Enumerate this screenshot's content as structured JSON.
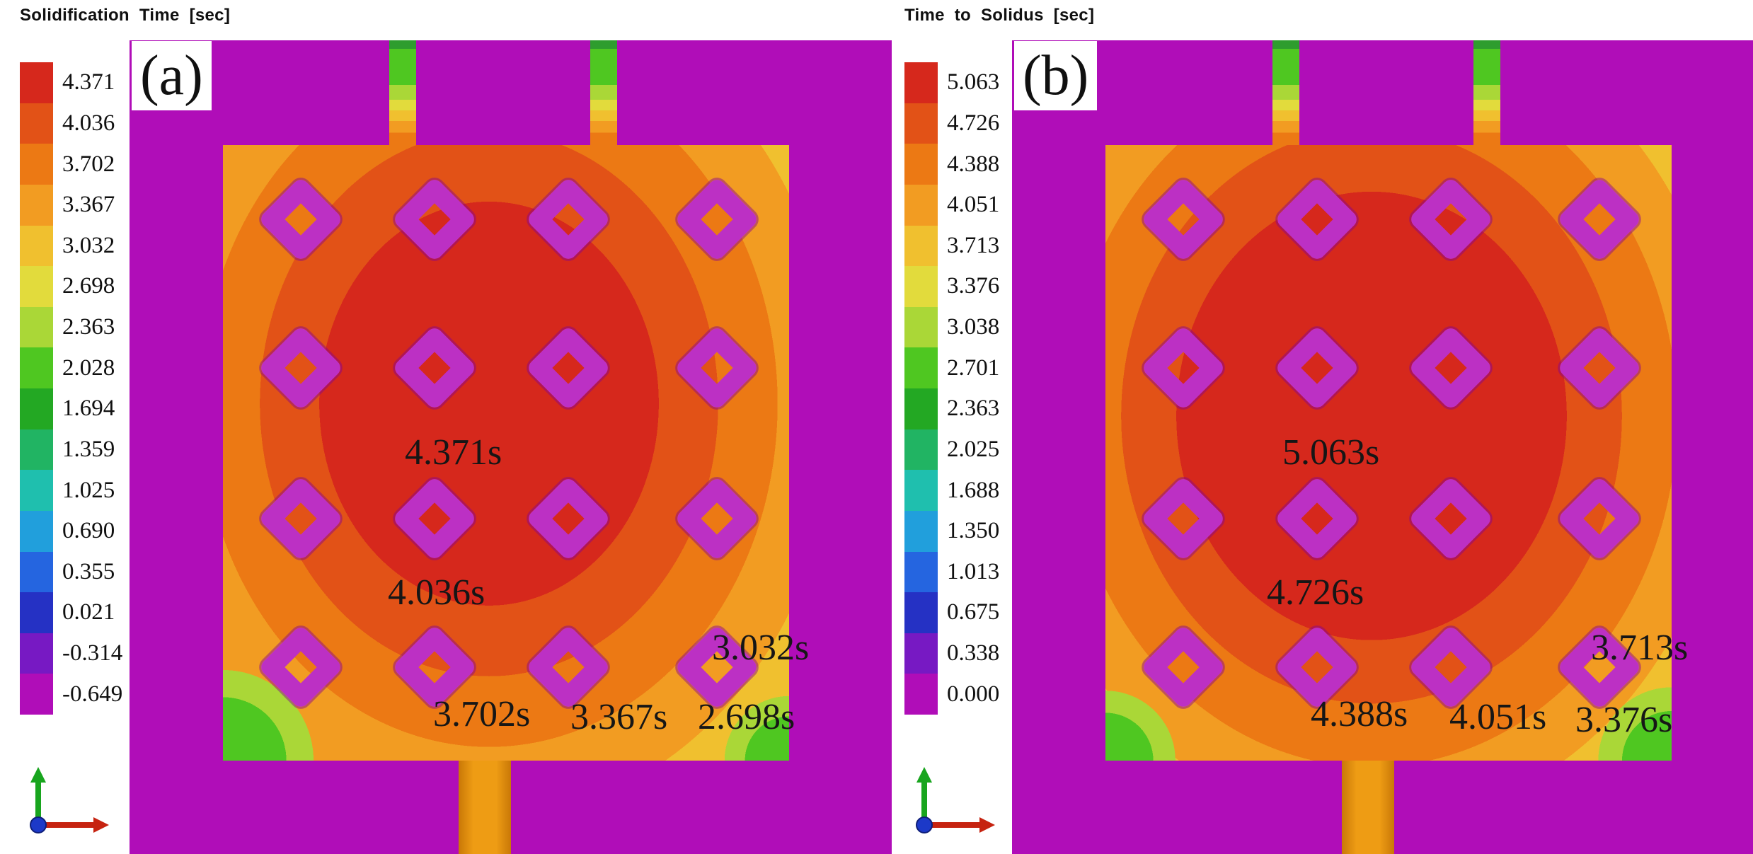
{
  "colors": {
    "legend": [
      "#D6281C",
      "#E25217",
      "#EC7914",
      "#F29C22",
      "#F0C02F",
      "#E2DB3C",
      "#AAD737",
      "#4FC721",
      "#23A823",
      "#21B463",
      "#1FBFAE",
      "#219FDC",
      "#2565E0",
      "#2531C4",
      "#7719C3",
      "#B00DB8"
    ],
    "background_magenta": "#B00DB8",
    "diamond_magenta": "#BC30C4",
    "hot_spot_red": "#D6281C",
    "annotation_black": "#161616"
  },
  "panels": [
    {
      "panel_label": "(a)",
      "legend_title": "Solidification Time [sec]",
      "legend_values": [
        "4.371",
        "4.036",
        "3.702",
        "3.367",
        "3.032",
        "2.698",
        "2.363",
        "2.028",
        "1.694",
        "1.359",
        "1.025",
        "0.690",
        "0.355",
        "0.021",
        "-0.314",
        "-0.649"
      ],
      "annotations": [
        "4.371s",
        "4.036s",
        "3.032s",
        "3.702s",
        "3.367s",
        "2.698s"
      ]
    },
    {
      "panel_label": "(b)",
      "legend_title": "Time to Solidus [sec]",
      "legend_values": [
        "5.063",
        "4.726",
        "4.388",
        "4.051",
        "3.713",
        "3.376",
        "3.038",
        "2.701",
        "2.363",
        "2.025",
        "1.688",
        "1.350",
        "1.013",
        "0.675",
        "0.338",
        "0.000"
      ],
      "annotations": [
        "5.063s",
        "4.726s",
        "3.713s",
        "4.388s",
        "4.051s",
        "3.376s"
      ]
    }
  ],
  "chart_data": [
    {
      "type": "heatmap",
      "title": "Solidification Time [sec]",
      "panel_label": "(a)",
      "units": "sec",
      "legend_position": "left",
      "legend_scale": [
        4.371,
        4.036,
        3.702,
        3.367,
        3.032,
        2.698,
        2.363,
        2.028,
        1.694,
        1.359,
        1.025,
        0.69,
        0.355,
        0.021,
        -0.314,
        -0.649
      ],
      "value_range": [
        -0.649,
        4.371
      ],
      "annotated_values": [
        {
          "label": "4.371s",
          "value": 4.371
        },
        {
          "label": "4.036s",
          "value": 4.036
        },
        {
          "label": "3.032s",
          "value": 3.032
        },
        {
          "label": "3.702s",
          "value": 3.702
        },
        {
          "label": "3.367s",
          "value": 3.367
        },
        {
          "label": "2.698s",
          "value": 2.698
        }
      ]
    },
    {
      "type": "heatmap",
      "title": "Time to Solidus [sec]",
      "panel_label": "(b)",
      "units": "sec",
      "legend_position": "left",
      "legend_scale": [
        5.063,
        4.726,
        4.388,
        4.051,
        3.713,
        3.376,
        3.038,
        2.701,
        2.363,
        2.025,
        1.688,
        1.35,
        1.013,
        0.675,
        0.338,
        0.0
      ],
      "value_range": [
        0.0,
        5.063
      ],
      "annotated_values": [
        {
          "label": "5.063s",
          "value": 5.063
        },
        {
          "label": "4.726s",
          "value": 4.726
        },
        {
          "label": "3.713s",
          "value": 3.713
        },
        {
          "label": "4.388s",
          "value": 4.388
        },
        {
          "label": "4.051s",
          "value": 4.051
        },
        {
          "label": "3.376s",
          "value": 3.376
        }
      ]
    }
  ]
}
